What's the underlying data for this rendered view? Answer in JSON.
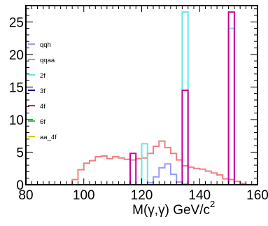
{
  "chart_data": {
    "type": "line",
    "style": "step-histogram",
    "title": "",
    "xlabel_main": "M(γ,γ) GeV/c",
    "xlabel_sup": "2",
    "ylabel": "",
    "xlim": [
      80,
      160
    ],
    "ylim": [
      0,
      27.5
    ],
    "xticks": [
      80,
      100,
      120,
      140,
      160
    ],
    "yticks": [
      0,
      5,
      10,
      15,
      20,
      25
    ],
    "grid": false,
    "legend_position": "top-left",
    "bin_edges": [
      80,
      82,
      84,
      86,
      88,
      90,
      92,
      94,
      96,
      98,
      100,
      102,
      104,
      106,
      108,
      110,
      112,
      114,
      116,
      118,
      120,
      122,
      124,
      126,
      128,
      130,
      132,
      134,
      136,
      138,
      140,
      142,
      144,
      146,
      148,
      150,
      152,
      154,
      156,
      158,
      160
    ],
    "series": [
      {
        "name": "qqh",
        "color": "#9999ff",
        "values": [
          0,
          0,
          0,
          0,
          0,
          0,
          0,
          0,
          0,
          0,
          0,
          0,
          0,
          0,
          0,
          0,
          0,
          0,
          0,
          0,
          0,
          0.3,
          1.2,
          2.6,
          3.2,
          1.6,
          0.4,
          0.1,
          0,
          0,
          0,
          0,
          0,
          0,
          0,
          0,
          0,
          0,
          0,
          0
        ]
      },
      {
        "name": "qqaa",
        "color": "#f08080",
        "values": [
          0,
          0,
          0,
          0,
          0,
          0,
          0,
          0,
          0.8,
          2.3,
          3.3,
          3.7,
          4.3,
          4.4,
          4.0,
          4.3,
          4.1,
          3.9,
          3.8,
          4.0,
          4.1,
          4.8,
          5.9,
          6.7,
          5.7,
          4.8,
          3.8,
          2.9,
          2.7,
          2.5,
          2.4,
          2.1,
          1.8,
          1.5,
          0.9,
          0.8,
          0.5,
          0.2,
          0,
          0
        ]
      },
      {
        "name": "2f",
        "color": "#66e6e6",
        "values": [
          0,
          0,
          0,
          0,
          0,
          0,
          0,
          0,
          0,
          0,
          0,
          0,
          0,
          0,
          0,
          0,
          0,
          0,
          0,
          0,
          6.3,
          0,
          0,
          0,
          0,
          0,
          0,
          26.5,
          0,
          0,
          0,
          0,
          0,
          0,
          0,
          24,
          0,
          0,
          0,
          0
        ]
      },
      {
        "name": "3f",
        "color": "#000099",
        "values": [
          0,
          0,
          0,
          0,
          0,
          0,
          0,
          0,
          0,
          0,
          0,
          0,
          0,
          0,
          0,
          0,
          0,
          0,
          0,
          0,
          0,
          0,
          0,
          0,
          0,
          0,
          0,
          0,
          0,
          0,
          0,
          0,
          0,
          0,
          0,
          0,
          0,
          0,
          0,
          0
        ]
      },
      {
        "name": "4f",
        "color": "#cc0099",
        "values": [
          0,
          0,
          0,
          0,
          0,
          0,
          0,
          0,
          0,
          0,
          0,
          0,
          0,
          0,
          0,
          0,
          0,
          0,
          4.8,
          0,
          0,
          0,
          0,
          0,
          0,
          0,
          0,
          14.5,
          0,
          0,
          0,
          0,
          0,
          0,
          0,
          26.5,
          0,
          0,
          0,
          0
        ]
      },
      {
        "name": "6f",
        "color": "#33cc33",
        "values": [
          0,
          0,
          0,
          0,
          0,
          0,
          0,
          0,
          0,
          0,
          0,
          0,
          0,
          0,
          0,
          0,
          0,
          0,
          0,
          0,
          0,
          0,
          0,
          0,
          0,
          0,
          0,
          0,
          0,
          0,
          0,
          0,
          0,
          0,
          0,
          0,
          0,
          0,
          0,
          0
        ]
      },
      {
        "name": "aa_4f",
        "color": "#cccc00",
        "values": [
          0,
          0,
          0,
          0,
          0,
          0,
          0,
          0,
          0,
          0,
          0,
          0,
          0,
          0,
          0,
          0,
          0,
          0,
          0,
          0,
          0,
          0,
          0,
          0,
          0,
          0,
          0,
          0,
          0,
          0,
          0,
          0,
          0,
          0,
          0,
          0,
          0,
          0,
          0,
          0
        ]
      }
    ]
  }
}
